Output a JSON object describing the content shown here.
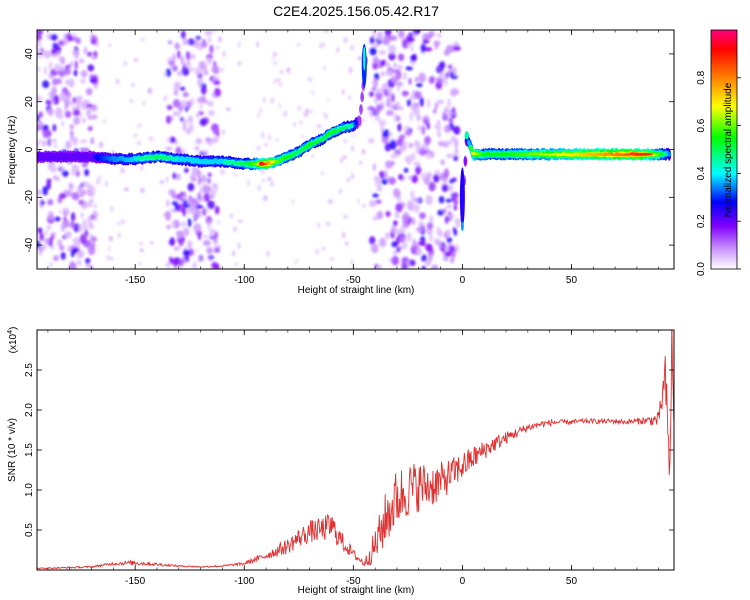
{
  "figure": {
    "title": "C2E4.2025.156.05.42.R17"
  },
  "chart_data": [
    {
      "type": "heatmap",
      "xlabel": "Height of straight line (km)",
      "ylabel": "Frequency (Hz)",
      "xlim": [
        -195,
        97
      ],
      "ylim": [
        -50,
        50
      ],
      "xticks": [
        -150,
        -100,
        -50,
        0,
        50
      ],
      "yticks": [
        -40,
        -20,
        0,
        20,
        40
      ],
      "colorbar": {
        "label": "Normalized spectral amplitude",
        "range": [
          0,
          1
        ],
        "ticks": [
          "0.0",
          "0.2",
          "0.4",
          "0.6",
          "0.8"
        ],
        "colors": [
          "#ffffff",
          "#cc99ff",
          "#8000ff",
          "#0000ff",
          "#00ffff",
          "#00ff00",
          "#ffff00",
          "#ff8000",
          "#ff0000",
          "#ff0080"
        ]
      },
      "ridge": {
        "x": [
          -195,
          -170,
          -160,
          -150,
          -140,
          -130,
          -120,
          -110,
          -100,
          -95,
          -90,
          -85,
          -80,
          -75,
          -70,
          -65,
          -60,
          -55,
          -50,
          -47,
          -44,
          0,
          2,
          5,
          10,
          20,
          30,
          40,
          50,
          60,
          70,
          80,
          90,
          95
        ],
        "y": [
          -3,
          -3,
          -4,
          -4,
          -3,
          -4,
          -5,
          -5,
          -6,
          -6,
          -6,
          -5,
          -3,
          -1,
          2,
          4,
          7,
          9,
          10,
          12,
          40,
          -25,
          5,
          -2,
          -2,
          -2,
          -2,
          -2,
          -2,
          -2,
          -2,
          -2,
          -2,
          -2
        ],
        "amplitude": [
          0.3,
          0.3,
          0.4,
          0.45,
          0.5,
          0.45,
          0.45,
          0.45,
          0.5,
          0.6,
          0.85,
          0.6,
          0.55,
          0.5,
          0.55,
          0.5,
          0.55,
          0.5,
          0.45,
          0.2,
          0.2,
          0.15,
          0.3,
          0.7,
          0.55,
          0.55,
          0.6,
          0.65,
          0.7,
          0.75,
          0.8,
          0.85,
          0.6,
          0.4
        ]
      },
      "noise_bands": [
        [
          -195,
          -168
        ],
        [
          -135,
          -112
        ],
        [
          -42,
          -2
        ]
      ]
    },
    {
      "type": "line",
      "xlabel": "Height of straight line (km)",
      "ylabel": "SNR (10 * v/v)",
      "yscale_label": "(x10",
      "yscale_exp": "4",
      "xlim": [
        -195,
        97
      ],
      "ylim": [
        0,
        3.0
      ],
      "xticks": [
        -150,
        -100,
        -50,
        0,
        50
      ],
      "yticks": [
        0.5,
        1.0,
        1.5,
        2.0,
        2.5
      ],
      "series": [
        {
          "color": "#e03030",
          "x": [
            -195,
            -180,
            -170,
            -160,
            -150,
            -140,
            -130,
            -120,
            -110,
            -100,
            -90,
            -80,
            -75,
            -70,
            -65,
            -60,
            -55,
            -50,
            -45,
            -40,
            -35,
            -30,
            -25,
            -20,
            -15,
            -10,
            -5,
            0,
            5,
            10,
            15,
            20,
            25,
            30,
            35,
            40,
            45,
            50,
            55,
            60,
            65,
            70,
            75,
            80,
            85,
            90,
            93,
            95,
            96,
            97
          ],
          "y": [
            0.02,
            0.03,
            0.04,
            0.08,
            0.09,
            0.07,
            0.05,
            0.04,
            0.05,
            0.08,
            0.18,
            0.3,
            0.4,
            0.48,
            0.5,
            0.55,
            0.35,
            0.2,
            0.08,
            0.3,
            0.65,
            0.9,
            1.0,
            1.05,
            1.05,
            1.1,
            1.2,
            1.3,
            1.4,
            1.5,
            1.58,
            1.65,
            1.72,
            1.78,
            1.82,
            1.84,
            1.85,
            1.85,
            1.86,
            1.86,
            1.86,
            1.86,
            1.85,
            1.86,
            1.87,
            1.88,
            2.4,
            1.2,
            2.85,
            1.7
          ],
          "noise": [
            0.005,
            0.01,
            0.01,
            0.02,
            0.03,
            0.02,
            0.01,
            0.01,
            0.01,
            0.02,
            0.05,
            0.1,
            0.12,
            0.14,
            0.15,
            0.18,
            0.12,
            0.06,
            0.04,
            0.22,
            0.35,
            0.38,
            0.35,
            0.32,
            0.28,
            0.25,
            0.2,
            0.18,
            0.15,
            0.12,
            0.1,
            0.08,
            0.06,
            0.05,
            0.04,
            0.04,
            0.03,
            0.03,
            0.03,
            0.03,
            0.03,
            0.03,
            0.03,
            0.04,
            0.05,
            0.1,
            0.3,
            0.4,
            0.4,
            0.3
          ]
        }
      ]
    }
  ]
}
